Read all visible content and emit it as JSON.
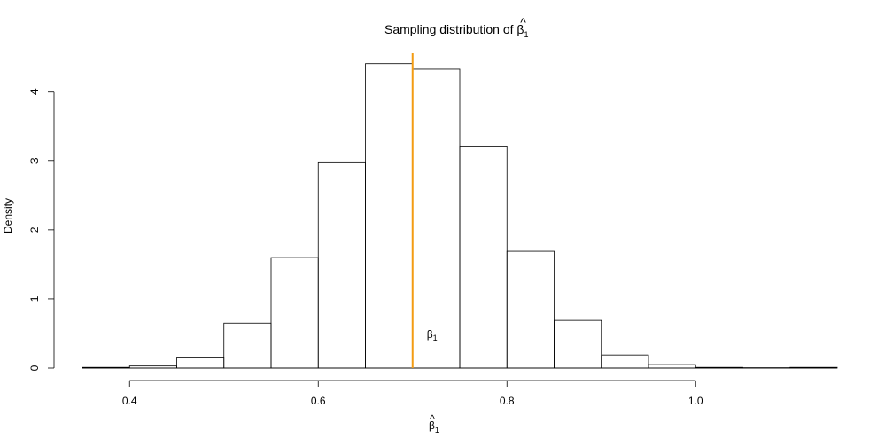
{
  "chart_data": {
    "type": "bar",
    "title": {
      "text": "Sampling distribution of ",
      "symbol": "β",
      "hat": "^",
      "subscript": "1"
    },
    "xlabel": {
      "symbol": "β",
      "hat": "^",
      "subscript": "1"
    },
    "ylabel": "Density",
    "xlim": [
      0.35,
      1.15
    ],
    "ylim": [
      0,
      4.56
    ],
    "x_ticks": [
      0.4,
      0.6,
      0.8,
      1.0
    ],
    "x_tick_labels": [
      "0.4",
      "0.6",
      "0.8",
      "1.0"
    ],
    "y_ticks": [
      0,
      1,
      2,
      3,
      4
    ],
    "y_tick_labels": [
      "0",
      "1",
      "2",
      "3",
      "4"
    ],
    "bins": [
      {
        "start": 0.35,
        "end": 0.4,
        "density": 0.01
      },
      {
        "start": 0.4,
        "end": 0.45,
        "density": 0.03
      },
      {
        "start": 0.45,
        "end": 0.5,
        "density": 0.16
      },
      {
        "start": 0.5,
        "end": 0.55,
        "density": 0.65
      },
      {
        "start": 0.55,
        "end": 0.6,
        "density": 1.6
      },
      {
        "start": 0.6,
        "end": 0.65,
        "density": 2.98
      },
      {
        "start": 0.65,
        "end": 0.7,
        "density": 4.41
      },
      {
        "start": 0.7,
        "end": 0.75,
        "density": 4.33
      },
      {
        "start": 0.75,
        "end": 0.8,
        "density": 3.21
      },
      {
        "start": 0.8,
        "end": 0.85,
        "density": 1.69
      },
      {
        "start": 0.85,
        "end": 0.9,
        "density": 0.69
      },
      {
        "start": 0.9,
        "end": 0.95,
        "density": 0.19
      },
      {
        "start": 0.95,
        "end": 1.0,
        "density": 0.05
      },
      {
        "start": 1.0,
        "end": 1.05,
        "density": 0.01
      },
      {
        "start": 1.05,
        "end": 1.1,
        "density": 0.005
      },
      {
        "start": 1.1,
        "end": 1.15,
        "density": 0.01
      }
    ],
    "reference_line": {
      "x": 0.7,
      "color": "#f39c12",
      "label": {
        "symbol": "β",
        "subscript": "1"
      },
      "label_y": 0.5
    },
    "grid": false,
    "legend": "none"
  }
}
